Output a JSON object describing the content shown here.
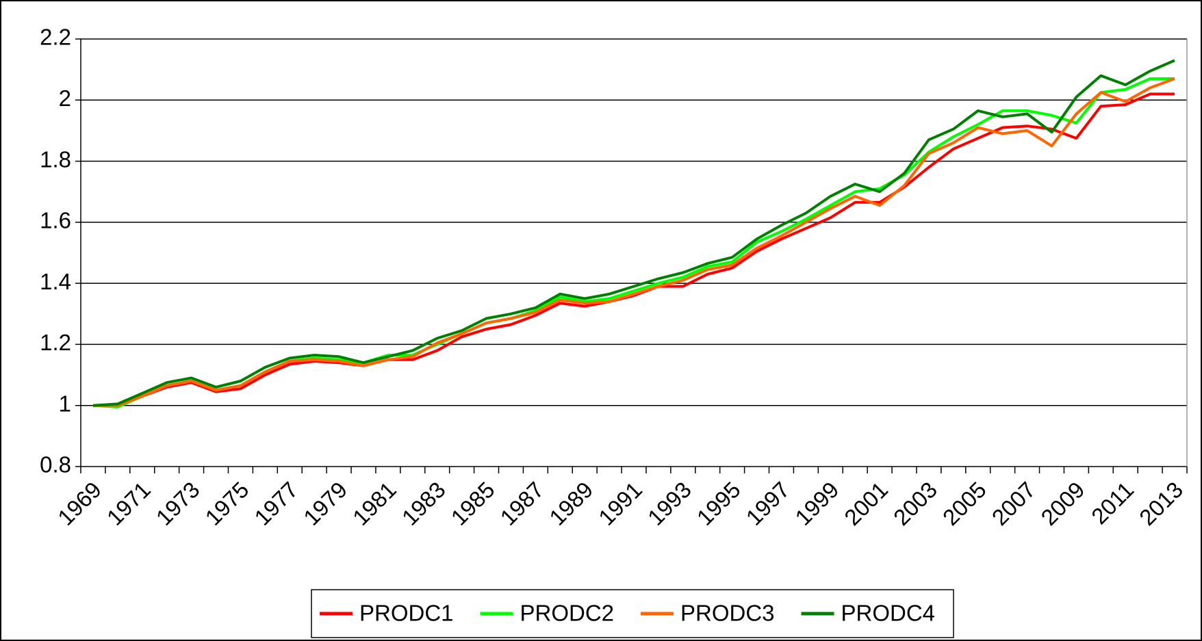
{
  "chart_data": {
    "type": "line",
    "categories": [
      "1969",
      null,
      "1971",
      null,
      "1973",
      null,
      "1975",
      null,
      "1977",
      null,
      "1979",
      null,
      "1981",
      null,
      "1983",
      null,
      "1985",
      null,
      "1987",
      null,
      "1989",
      null,
      "1991",
      null,
      "1993",
      null,
      "1995",
      null,
      "1997",
      null,
      "1999",
      null,
      "2001",
      null,
      "2003",
      null,
      "2005",
      null,
      "2007",
      null,
      "2009",
      null,
      "2011",
      null,
      "2013"
    ],
    "series": [
      {
        "name": "PRODC1",
        "color": "#ff0000",
        "values": [
          1.0,
          1.0,
          1.03,
          1.06,
          1.075,
          1.045,
          1.055,
          1.1,
          1.135,
          1.145,
          1.14,
          1.13,
          1.15,
          1.15,
          1.18,
          1.225,
          1.25,
          1.265,
          1.295,
          1.335,
          1.325,
          1.34,
          1.36,
          1.39,
          1.39,
          1.43,
          1.45,
          1.505,
          1.545,
          1.58,
          1.615,
          1.665,
          1.665,
          1.715,
          1.78,
          1.84,
          1.875,
          1.91,
          1.915,
          1.905,
          1.875,
          1.98,
          1.985,
          2.02,
          2.02
        ]
      },
      {
        "name": "PRODC2",
        "color": "#00ff00",
        "values": [
          1.0,
          0.995,
          1.03,
          1.065,
          1.08,
          1.05,
          1.065,
          1.11,
          1.145,
          1.155,
          1.15,
          1.14,
          1.165,
          1.165,
          1.2,
          1.235,
          1.27,
          1.285,
          1.31,
          1.355,
          1.34,
          1.35,
          1.375,
          1.4,
          1.42,
          1.455,
          1.47,
          1.535,
          1.57,
          1.61,
          1.655,
          1.7,
          1.71,
          1.755,
          1.83,
          1.88,
          1.92,
          1.965,
          1.965,
          1.95,
          1.925,
          2.025,
          2.035,
          2.07,
          2.07
        ]
      },
      {
        "name": "PRODC3",
        "color": "#ff6600",
        "values": [
          1.0,
          1.0,
          1.03,
          1.065,
          1.08,
          1.05,
          1.065,
          1.11,
          1.145,
          1.15,
          1.145,
          1.13,
          1.15,
          1.16,
          1.205,
          1.235,
          1.27,
          1.285,
          1.305,
          1.345,
          1.335,
          1.34,
          1.365,
          1.39,
          1.41,
          1.445,
          1.46,
          1.515,
          1.555,
          1.6,
          1.645,
          1.685,
          1.655,
          1.72,
          1.825,
          1.86,
          1.91,
          1.89,
          1.9,
          1.85,
          1.955,
          2.025,
          1.995,
          2.04,
          2.07
        ]
      },
      {
        "name": "PRODC4",
        "color": "#008000",
        "values": [
          1.0,
          1.005,
          1.04,
          1.075,
          1.09,
          1.06,
          1.08,
          1.125,
          1.155,
          1.165,
          1.16,
          1.14,
          1.16,
          1.18,
          1.22,
          1.245,
          1.285,
          1.3,
          1.32,
          1.365,
          1.35,
          1.365,
          1.39,
          1.415,
          1.435,
          1.465,
          1.485,
          1.545,
          1.59,
          1.63,
          1.685,
          1.725,
          1.7,
          1.76,
          1.87,
          1.905,
          1.965,
          1.945,
          1.955,
          1.895,
          2.01,
          2.08,
          2.05,
          2.095,
          2.13
        ]
      }
    ],
    "ylim": [
      0.8,
      2.2
    ],
    "yticks": [
      0.8,
      1,
      1.2,
      1.4,
      1.6,
      1.8,
      2,
      2.2
    ],
    "grid": true,
    "legend": "bottom"
  }
}
